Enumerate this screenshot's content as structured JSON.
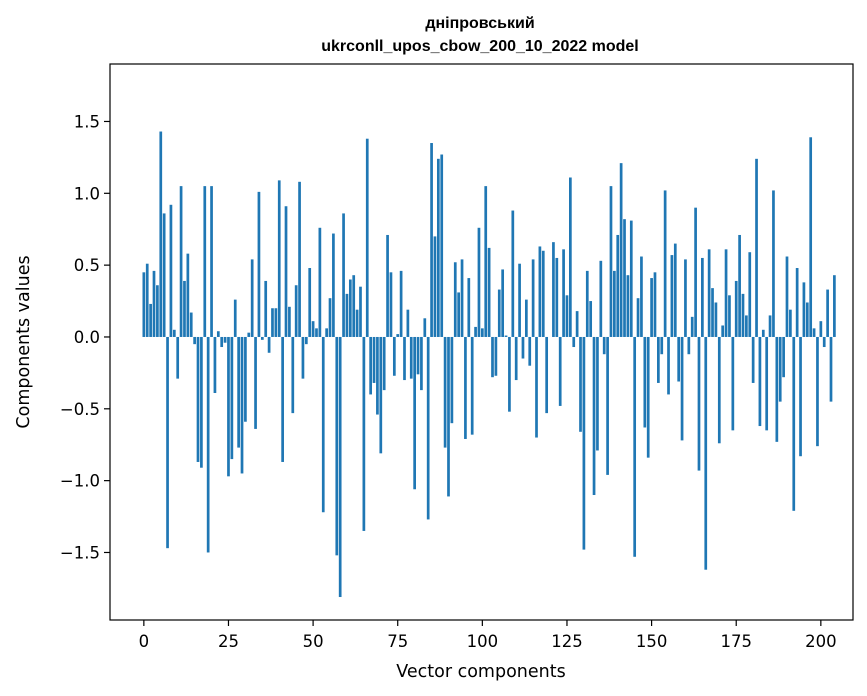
{
  "chart_data": {
    "type": "bar",
    "title_line1": "дніпровський",
    "title_line2": "ukrconll_upos_cbow_200_10_2022 model",
    "xlabel": "Vector components",
    "ylabel": "Components values",
    "xlim": [
      -10,
      209.5
    ],
    "ylim": [
      -1.97,
      1.9
    ],
    "xticks": [
      0,
      25,
      50,
      75,
      100,
      125,
      150,
      175,
      200
    ],
    "xtick_labels": [
      "0",
      "25",
      "50",
      "75",
      "100",
      "125",
      "150",
      "175",
      "200"
    ],
    "yticks": [
      -1.5,
      -1.0,
      -0.5,
      0.0,
      0.5,
      1.0,
      1.5
    ],
    "ytick_labels": [
      "−1.5",
      "−1.0",
      "−0.5",
      "0.0",
      "0.5",
      "1.0",
      "1.5"
    ],
    "grid": false,
    "bar_color": "#1f77b4",
    "values": [
      0.45,
      0.51,
      0.23,
      0.46,
      0.36,
      1.43,
      0.86,
      -1.47,
      0.92,
      0.05,
      -0.29,
      1.05,
      0.39,
      0.58,
      0.17,
      -0.05,
      -0.87,
      -0.91,
      1.05,
      -1.5,
      1.05,
      -0.39,
      0.04,
      -0.07,
      -0.04,
      -0.97,
      -0.85,
      0.26,
      -0.77,
      -0.95,
      -0.59,
      0.03,
      0.54,
      -0.64,
      1.01,
      -0.02,
      0.39,
      -0.11,
      0.2,
      0.2,
      1.09,
      -0.87,
      0.91,
      0.21,
      -0.53,
      0.36,
      1.08,
      -0.29,
      -0.05,
      0.48,
      0.11,
      0.06,
      0.76,
      -1.22,
      0.06,
      0.27,
      0.72,
      -1.52,
      -1.81,
      0.86,
      0.3,
      0.4,
      0.43,
      0.19,
      0.35,
      -1.35,
      1.38,
      -0.4,
      -0.32,
      -0.54,
      -0.81,
      -0.37,
      0.71,
      0.45,
      -0.27,
      0.02,
      0.46,
      -0.3,
      0.19,
      -0.29,
      -1.06,
      -0.26,
      -0.37,
      0.13,
      -1.27,
      1.35,
      0.7,
      1.24,
      1.27,
      -0.77,
      -1.11,
      -0.6,
      0.52,
      0.31,
      0.54,
      -0.71,
      0.41,
      -0.68,
      0.07,
      0.76,
      0.06,
      1.05,
      0.62,
      -0.28,
      -0.27,
      0.33,
      0.47,
      0.01,
      -0.52,
      0.88,
      -0.3,
      0.51,
      -0.15,
      0.26,
      -0.2,
      0.54,
      -0.7,
      0.63,
      0.6,
      -0.53,
      0.0,
      0.66,
      0.55,
      -0.48,
      0.61,
      0.29,
      1.11,
      -0.07,
      0.18,
      -0.66,
      -1.48,
      0.46,
      0.25,
      -1.1,
      -0.79,
      0.53,
      -0.12,
      -0.96,
      1.05,
      0.46,
      0.71,
      1.21,
      0.82,
      0.43,
      0.81,
      -1.53,
      0.27,
      0.56,
      -0.63,
      -0.84,
      0.41,
      0.45,
      -0.32,
      -0.12,
      1.02,
      -0.4,
      0.57,
      0.65,
      -0.31,
      -0.72,
      0.54,
      -0.12,
      0.14,
      0.9,
      -0.93,
      0.55,
      -1.62,
      0.61,
      0.34,
      0.24,
      -0.74,
      0.08,
      0.61,
      0.29,
      -0.65,
      0.39,
      0.71,
      0.3,
      0.15,
      0.59,
      -0.32,
      1.24,
      -0.62,
      0.05,
      -0.65,
      0.15,
      1.02,
      -0.73,
      -0.45,
      -0.28,
      0.56,
      0.19,
      -1.21,
      0.48,
      -0.83,
      0.38,
      0.24,
      1.39,
      0.06,
      -0.76,
      0.11,
      -0.07,
      0.33,
      -0.45,
      0.43
    ]
  }
}
